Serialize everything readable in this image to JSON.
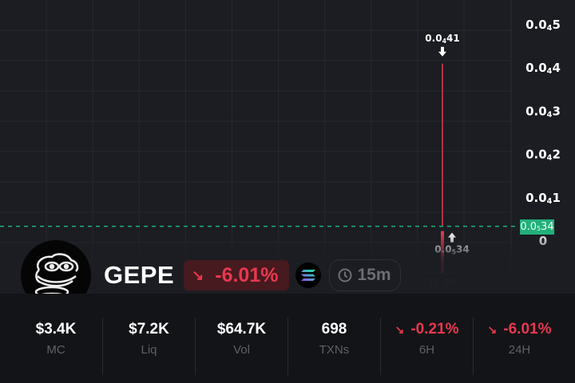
{
  "chart_data": {
    "type": "candlestick",
    "y_ticks": [
      {
        "label": "0.0₄5",
        "value": 5e-06
      },
      {
        "label": "0.0₄4",
        "value": 4e-06
      },
      {
        "label": "0.0₄3",
        "value": 3e-06
      },
      {
        "label": "0.0₄2",
        "value": 2e-06
      },
      {
        "label": "0.0₄1",
        "value": 1e-06
      },
      {
        "label": "0",
        "value": 0
      }
    ],
    "x_ticks": [
      "15:00"
    ],
    "ylim": [
      0,
      5e-06
    ],
    "candles": [
      {
        "time": "15:00",
        "high": 4.1e-06,
        "close": 3.4e-07,
        "direction": "down"
      }
    ],
    "high_label": "0.0₄41",
    "low_label": "0.0₅34",
    "current_price": 3.4e-07,
    "current_price_label": "0.0₅34",
    "colors": {
      "down": "#e8384f",
      "current_line": "#22b07a",
      "grid": "#262930"
    }
  },
  "token": {
    "name": "GEPE",
    "change": "-6.01%",
    "change_icon": "arrow-down-right-icon",
    "chain_icon": "solana-icon",
    "timeframe": "15m"
  },
  "stats": [
    {
      "value": "$3.4K",
      "label": "MC"
    },
    {
      "value": "$7.2K",
      "label": "Liq"
    },
    {
      "value": "$64.7K",
      "label": "Vol"
    },
    {
      "value": "698",
      "label": "TXNs"
    },
    {
      "value": "-0.21%",
      "label": "6H",
      "negative": true
    },
    {
      "value": "-6.01%",
      "label": "24H",
      "negative": true
    }
  ]
}
